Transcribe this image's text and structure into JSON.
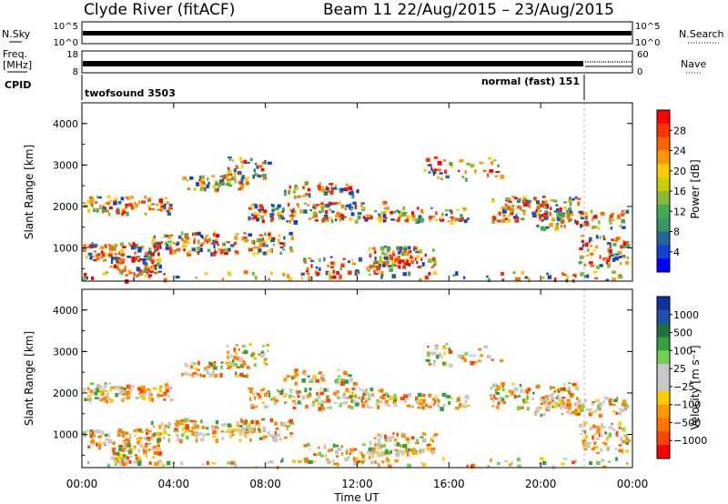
{
  "header": {
    "title_left": "Clyde River (fitACF)",
    "title_right": "Beam 11 22/Aug/2015 – 23/Aug/2015"
  },
  "panels": {
    "nsky": {
      "label": "N.Sky",
      "ticks_left": [
        "10^5",
        "10^0"
      ],
      "ticks_right": [
        "10^5",
        "10^0"
      ],
      "right_label": "N.Search"
    },
    "freq": {
      "label_line1": "Freq.",
      "label_line2": "[MHz]",
      "ticks_left": [
        "18",
        "8"
      ],
      "ticks_right": [
        "60",
        "0"
      ],
      "right_label": "Nave"
    },
    "cpid": {
      "label": "CPID",
      "segments": [
        "twofsound 3503",
        "normal (fast) 151"
      ]
    }
  },
  "chart_data": [
    {
      "type": "heatmap",
      "name": "power",
      "ylabel": "Slant Range [km]",
      "xlabel": "",
      "ylim": [
        200,
        4500
      ],
      "yticks": [
        "1000",
        "2000",
        "3000",
        "4000"
      ],
      "colorbar": {
        "label": "Power [dB]",
        "ticks": [
          "28",
          "24",
          "20",
          "16",
          "12",
          "8",
          "4"
        ],
        "colors": [
          "#ff0000",
          "#ff3300",
          "#ff6600",
          "#ff9900",
          "#ffcc00",
          "#cccc00",
          "#88bb33",
          "#44aa55",
          "#339966",
          "#226699",
          "#1144cc",
          "#0000ff"
        ]
      }
    },
    {
      "type": "heatmap",
      "name": "velocity",
      "ylabel": "Slant Range [km]",
      "xlabel": "Time UT",
      "ylim": [
        200,
        4500
      ],
      "yticks": [
        "1000",
        "2000",
        "3000",
        "4000"
      ],
      "xticks": [
        "00:00",
        "04:00",
        "08:00",
        "12:00",
        "16:00",
        "20:00",
        "00:00"
      ],
      "colorbar": {
        "label": "Velocity [m s⁻¹]",
        "ticks": [
          "1000",
          "500",
          "100",
          "25",
          "−25",
          "−100",
          "−500",
          "−1000"
        ],
        "colors": [
          "#1030a0",
          "#2050b0",
          "#207040",
          "#30a040",
          "#70d050",
          "#c8c8c8",
          "#c8c8c8",
          "#ffcc00",
          "#ff9900",
          "#ff7700",
          "#ff4400",
          "#ff0000"
        ]
      }
    }
  ]
}
